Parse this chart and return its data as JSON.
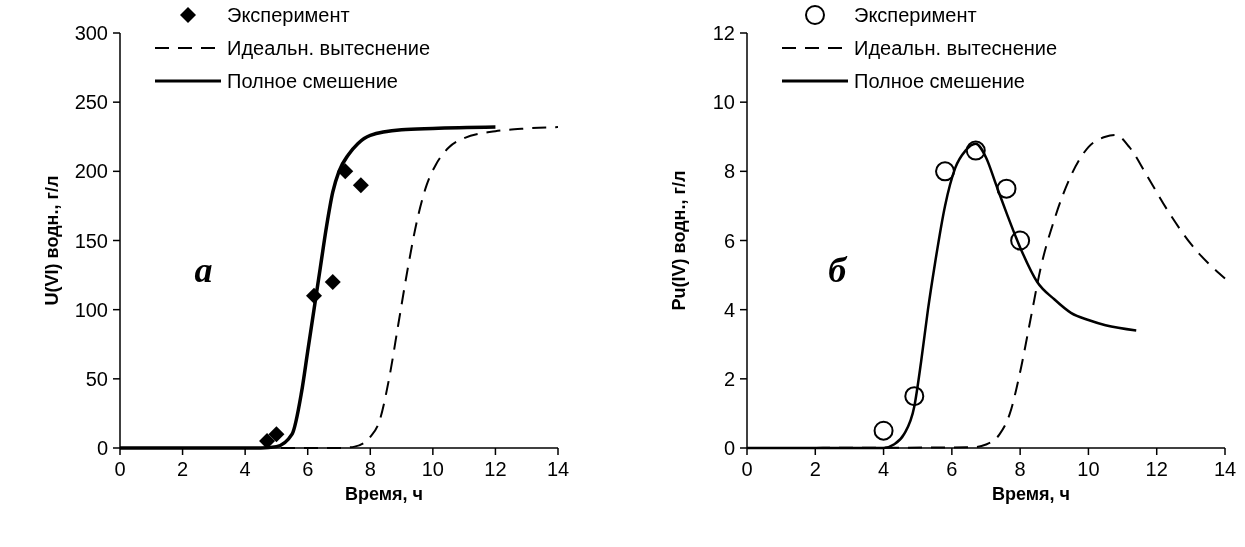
{
  "chart_data": [
    {
      "type": "line",
      "xlabel": "Время, ч",
      "ylabel": "U(VI) водн., г/л",
      "xlim": [
        0,
        14
      ],
      "ylim": [
        0,
        300
      ],
      "xticks": [
        0,
        2,
        4,
        6,
        8,
        10,
        12,
        14
      ],
      "yticks": [
        0,
        50,
        100,
        150,
        200,
        250,
        300
      ],
      "legend": "top left",
      "grid": false,
      "annotations": [
        "а"
      ],
      "series": [
        {
          "name": "Эксперимент",
          "type": "scatter",
          "marker": "diamond",
          "color": "#000000",
          "x": [
            4.7,
            5.0,
            6.2,
            6.8,
            7.2,
            7.7
          ],
          "values": [
            5,
            10,
            110,
            120,
            200,
            190
          ]
        },
        {
          "name": "Идеальн. вытеснение",
          "type": "line",
          "line_style": "dashed",
          "color": "#000000",
          "x": [
            0,
            7,
            7.5,
            8,
            8.3,
            8.6,
            8.9,
            9.2,
            9.5,
            9.8,
            10.1,
            10.5,
            11,
            12,
            13,
            14
          ],
          "values": [
            0,
            0,
            1,
            8,
            20,
            50,
            90,
            130,
            165,
            190,
            205,
            217,
            224,
            229,
            231,
            232
          ]
        },
        {
          "name": "Полное смешение",
          "type": "line",
          "line_style": "solid",
          "color": "#000000",
          "x": [
            0,
            4.5,
            5,
            5.5,
            5.8,
            6,
            6.2,
            6.4,
            6.6,
            6.8,
            7,
            7.3,
            7.6,
            8,
            9,
            10,
            12
          ],
          "values": [
            0,
            0,
            1,
            10,
            40,
            70,
            100,
            130,
            160,
            185,
            200,
            212,
            220,
            226,
            230,
            231,
            232
          ]
        }
      ]
    },
    {
      "type": "line",
      "xlabel": "Время, ч",
      "ylabel": "Pu(IV) водн., г/л",
      "xlim": [
        0,
        14
      ],
      "ylim": [
        0,
        12
      ],
      "xticks": [
        0,
        2,
        4,
        6,
        8,
        10,
        12,
        14
      ],
      "yticks": [
        0,
        2,
        4,
        6,
        8,
        10,
        12
      ],
      "legend": "top left",
      "grid": false,
      "annotations": [
        "б"
      ],
      "series": [
        {
          "name": "Эксперимент",
          "type": "scatter",
          "marker": "circle",
          "color": "#000000",
          "x": [
            4.0,
            4.9,
            5.8,
            6.7,
            7.6,
            8.0
          ],
          "values": [
            0.5,
            1.5,
            8,
            8.6,
            7.5,
            6
          ]
        },
        {
          "name": "Идеальн. вытеснение",
          "type": "line",
          "line_style": "dashed",
          "color": "#000000",
          "x": [
            0,
            6.6,
            7,
            7.4,
            7.7,
            8,
            8.3,
            8.6,
            9,
            9.5,
            10,
            10.5,
            10.8,
            11.2,
            11.7,
            12.3,
            13,
            14
          ],
          "values": [
            0,
            0.02,
            0.1,
            0.4,
            1,
            2.2,
            3.7,
            5.2,
            6.6,
            7.9,
            8.7,
            9,
            9.05,
            8.7,
            7.9,
            6.9,
            5.9,
            4.9
          ]
        },
        {
          "name": "Полное смешение",
          "type": "line",
          "line_style": "solid",
          "color": "#000000",
          "x": [
            0,
            4,
            4.3,
            4.6,
            4.9,
            5.1,
            5.3,
            5.5,
            5.8,
            6.1,
            6.4,
            6.7,
            7,
            7.3,
            7.6,
            8,
            8.5,
            9,
            9.5,
            10,
            10.5,
            11.4
          ],
          "values": [
            0,
            0,
            0.1,
            0.4,
            1.2,
            2.5,
            4,
            5.3,
            7,
            8.1,
            8.6,
            8.8,
            8.4,
            7.6,
            6.8,
            5.8,
            4.8,
            4.3,
            3.9,
            3.7,
            3.55,
            3.4
          ]
        }
      ]
    }
  ]
}
